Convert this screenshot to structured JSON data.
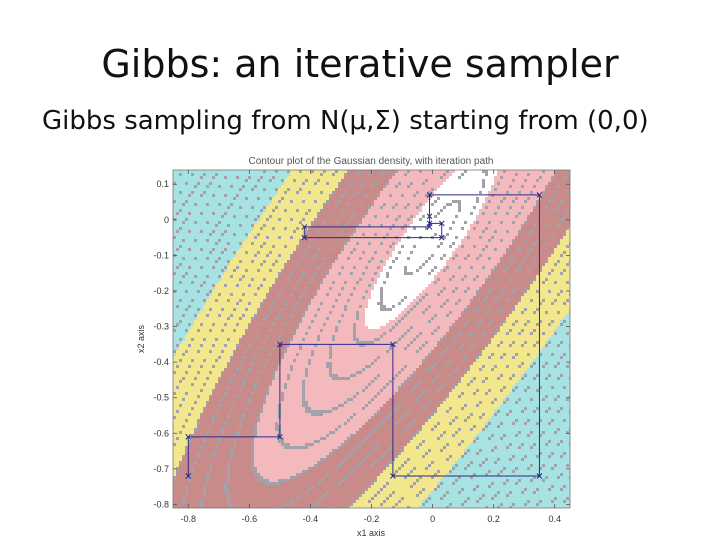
{
  "slide": {
    "title": "Gibbs: an iterative sampler",
    "subtitle": "Gibbs sampling from N(μ,Σ) starting from (0,0)"
  },
  "chart_data": {
    "type": "contour",
    "title": "Contour plot of the Gaussian density, with iteration path",
    "xlabel": "x1 axis",
    "ylabel": "x2 axis",
    "xlim": [
      -0.85,
      0.45
    ],
    "ylim": [
      -0.81,
      0.14
    ],
    "xticks": [
      -0.8,
      -0.6,
      -0.4,
      -0.2,
      0,
      0.2,
      0.4
    ],
    "xtick_labels": [
      "-0.8",
      "-0.6",
      "-0.4",
      "-0.2",
      "0",
      "0.2",
      "0.4"
    ],
    "yticks": [
      0.1,
      0,
      -0.1,
      -0.2,
      -0.3,
      -0.4,
      -0.5,
      -0.6,
      -0.7,
      -0.8
    ],
    "ytick_labels": [
      "0.1",
      "0",
      "-0.1",
      "-0.2",
      "-0.3",
      "-0.4",
      "-0.5",
      "-0.6",
      "-0.7",
      "-0.8"
    ],
    "density": {
      "mean": [
        0.0,
        -0.05
      ],
      "major_axis_angle_deg": 50,
      "major_sd": 0.5,
      "minor_sd": 0.12
    },
    "colormap": [
      "#ffffff",
      "#f3b9bd",
      "#c98a8a",
      "#f2e78c",
      "#a8e3e3"
    ],
    "path": {
      "color": "#2a2a8a",
      "marker": "x",
      "x": [
        -0.8,
        -0.8,
        -0.5,
        -0.5,
        -0.13,
        -0.13,
        0.35,
        0.35,
        -0.01,
        -0.01,
        0.03,
        0.03,
        -0.42,
        -0.42,
        -0.01,
        -0.01
      ],
      "y": [
        -0.72,
        -0.61,
        -0.61,
        -0.35,
        -0.35,
        -0.72,
        -0.72,
        0.07,
        0.07,
        -0.01,
        -0.01,
        -0.05,
        -0.05,
        -0.02,
        -0.02,
        0.01
      ]
    }
  }
}
